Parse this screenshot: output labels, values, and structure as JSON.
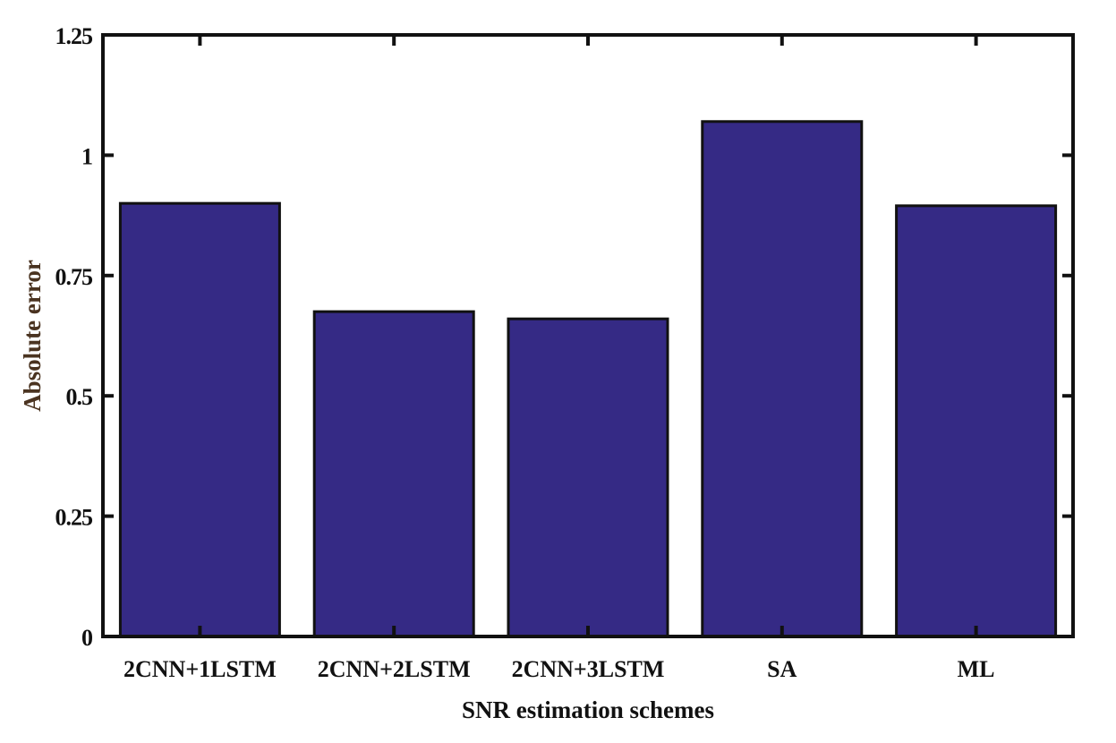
{
  "chart_data": {
    "type": "bar",
    "title": "",
    "xlabel": "SNR estimation schemes",
    "ylabel": "Absolute error",
    "categories": [
      "2CNN+1LSTM",
      "2CNN+2LSTM",
      "2CNN+3LSTM",
      "SA",
      "ML"
    ],
    "values": [
      0.9,
      0.675,
      0.66,
      1.07,
      0.895
    ],
    "ylim": [
      0,
      1.25
    ],
    "yticks": [
      0,
      0.25,
      0.5,
      0.75,
      1,
      1.25
    ],
    "ytick_labels": [
      "0",
      "0.25",
      "0.5",
      "0.75",
      "1",
      "1.25"
    ],
    "grid": false,
    "legend": "none",
    "colors": {
      "bar": "#352a85",
      "bar_edge": "#111111",
      "ylabel": "#4a3320",
      "axis": "#111111"
    }
  }
}
